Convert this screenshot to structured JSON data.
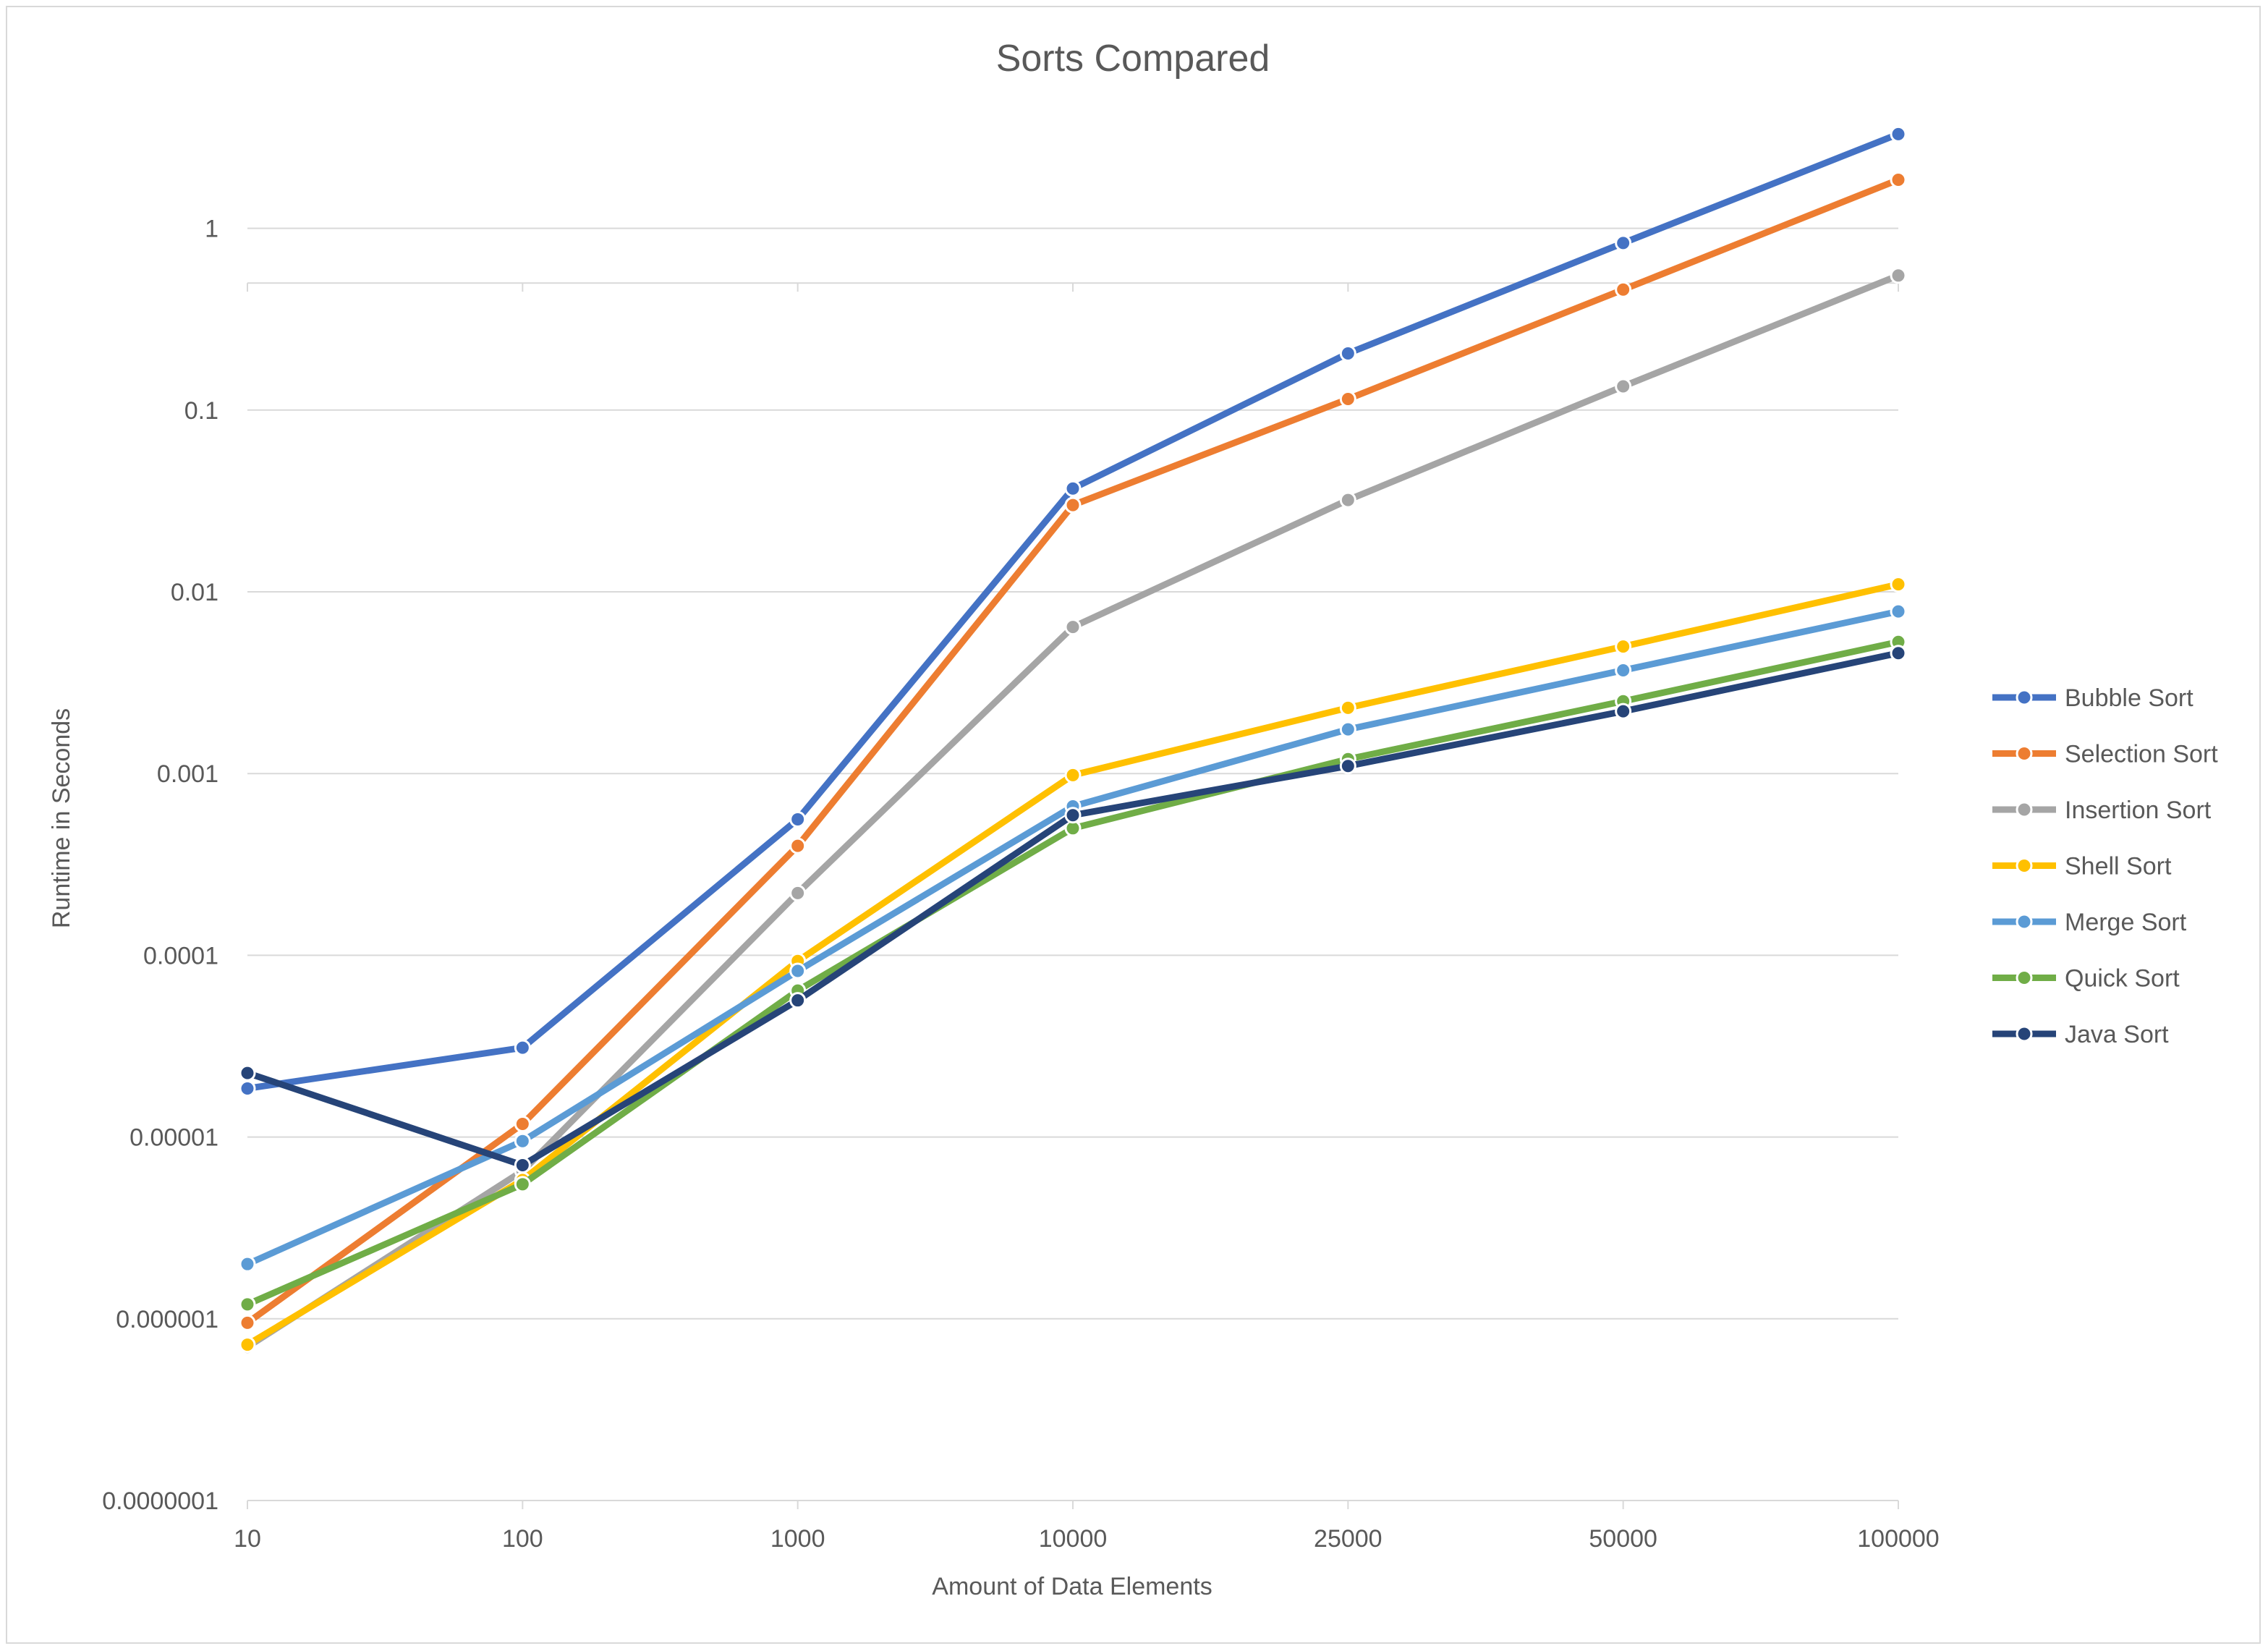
{
  "chart_data": {
    "type": "line",
    "title": "Sorts Compared",
    "xlabel": "Amount of Data Elements",
    "ylabel": "Runtime in Seconds",
    "y_scale": "log",
    "ylim": [
      1e-07,
      5
    ],
    "grid": true,
    "legend_position": "right",
    "categories": [
      "10",
      "100",
      "1000",
      "10000",
      "25000",
      "50000",
      "100000"
    ],
    "y_ticks": [
      {
        "value": 1e-07,
        "label": "0.0000001"
      },
      {
        "value": 1e-06,
        "label": "0.000001"
      },
      {
        "value": 1e-05,
        "label": "0.00001"
      },
      {
        "value": 0.0001,
        "label": "0.0001"
      },
      {
        "value": 0.001,
        "label": "0.001"
      },
      {
        "value": 0.01,
        "label": "0.01"
      },
      {
        "value": 0.1,
        "label": "0.1"
      },
      {
        "value": 1,
        "label": "1"
      }
    ],
    "series": [
      {
        "name": "Bubble Sort",
        "color": "#4472C4",
        "values": [
          1.85e-05,
          3.1e-05,
          0.00056,
          0.037,
          0.205,
          0.83,
          3.3
        ]
      },
      {
        "name": "Selection Sort",
        "color": "#ED7D31",
        "values": [
          9.5e-07,
          1.18e-05,
          0.0004,
          0.03,
          0.115,
          0.46,
          1.85
        ]
      },
      {
        "name": "Insertion Sort",
        "color": "#A5A5A5",
        "values": [
          7e-07,
          6.5e-06,
          0.00022,
          0.0064,
          0.032,
          0.135,
          0.55
        ]
      },
      {
        "name": "Shell Sort",
        "color": "#FFC000",
        "values": [
          7.2e-07,
          5.8e-06,
          9.3e-05,
          0.00098,
          0.0023,
          0.005,
          0.011
        ]
      },
      {
        "name": "Merge Sort",
        "color": "#5B9BD5",
        "values": [
          2e-06,
          9.5e-06,
          8.2e-05,
          0.00066,
          0.00175,
          0.0037,
          0.0078
        ]
      },
      {
        "name": "Quick Sort",
        "color": "#70AD47",
        "values": [
          1.2e-06,
          5.5e-06,
          6.4e-05,
          0.0005,
          0.0012,
          0.0025,
          0.0053
        ]
      },
      {
        "name": "Java Sort",
        "color": "#264478",
        "values": [
          2.25e-05,
          7e-06,
          5.65e-05,
          0.00059,
          0.0011,
          0.0022,
          0.0046
        ]
      }
    ]
  }
}
